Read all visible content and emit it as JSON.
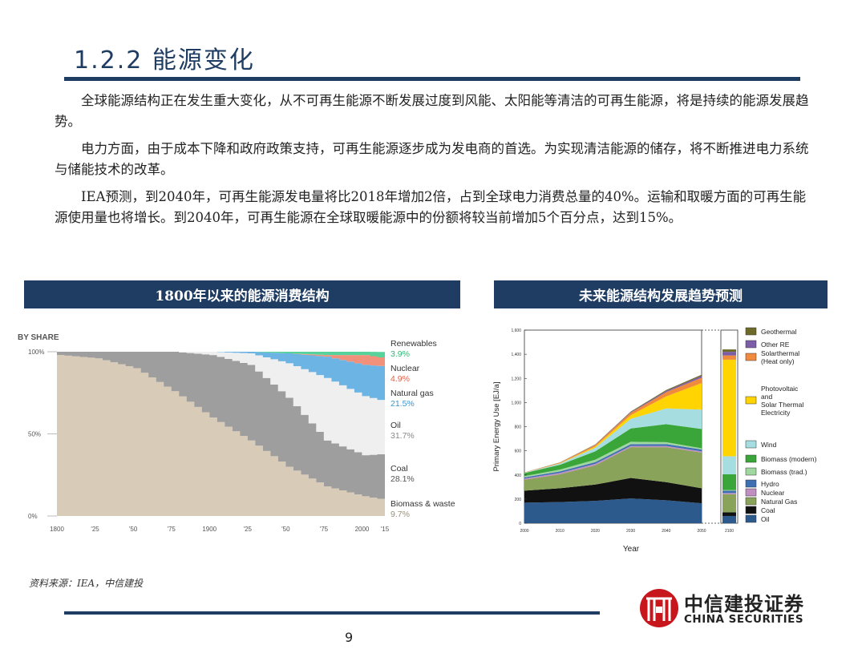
{
  "page": {
    "title": "1.2.2 能源变化",
    "paragraphs": [
      "全球能源结构正在发生重大变化，从不可再生能源不断发展过度到风能、太阳能等清洁的可再生能源，将是持续的能源发展趋势。",
      "电力方面，由于成本下降和政府政策支持，可再生能源逐步成为发电商的首选。为实现清洁能源的储存，将不断推进电力系统与储能技术的改革。",
      "IEA预测，到2040年，可再生能源发电量将比2018年增加2倍，占到全球电力消费总量的40%。运输和取暖方面的可再生能源使用量也将增长。到2040年，可再生能源在全球取暖能源中的份额将较当前增加5个百分点，达到15%。"
    ],
    "banner_left": "1800年以来的能源消费结构",
    "banner_right": "未来能源结构发展趋势预测",
    "source": "资料来源：IEA，中信建投",
    "page_number": "9",
    "logo_cn": "中信建投证券",
    "logo_en": "CHINA SECURITIES",
    "colors": {
      "navy": "#1f3d63",
      "logo_red": "#c8161d"
    }
  },
  "chart_data": [
    {
      "type": "area",
      "title": "BY SHARE",
      "x": [
        1800,
        1825,
        1850,
        1875,
        1900,
        1925,
        1950,
        1975,
        2000,
        2015
      ],
      "x_tick_labels": [
        "1800",
        "'25",
        "'50",
        "'75",
        "1900",
        "'25",
        "'50",
        "'75",
        "2000",
        "'15"
      ],
      "y_tick_labels": [
        "100%",
        "50%",
        "0%"
      ],
      "ylim": [
        0,
        100
      ],
      "series": [
        {
          "name": "Biomass & waste",
          "label": "9.7%",
          "color": "#d8ccb9",
          "values": [
            98,
            96,
            90,
            76,
            60,
            46,
            30,
            18,
            12,
            9.7
          ]
        },
        {
          "name": "Coal",
          "label": "28.1%",
          "color": "#9e9e9e",
          "values": [
            2,
            4,
            10,
            24,
            38,
            46,
            42,
            28,
            25,
            28.1
          ]
        },
        {
          "name": "Oil",
          "label": "31.7%",
          "color": "#efefef",
          "values": [
            0,
            0,
            0,
            0,
            2,
            7,
            21,
            38,
            36,
            31.7
          ]
        },
        {
          "name": "Natural gas",
          "label": "21.5%",
          "color": "#6cb4e4",
          "values": [
            0,
            0,
            0,
            0,
            0,
            1,
            6,
            13,
            19,
            21.5
          ]
        },
        {
          "name": "Nuclear",
          "label": "4.9%",
          "color": "#f2917b",
          "values": [
            0,
            0,
            0,
            0,
            0,
            0,
            0,
            1,
            6,
            4.9
          ]
        },
        {
          "name": "Renewables",
          "label": "3.9%",
          "color": "#55d39a",
          "values": [
            0,
            0,
            0,
            0,
            0,
            0,
            1,
            2,
            2,
            3.9
          ]
        }
      ]
    },
    {
      "type": "area",
      "title": "",
      "xlabel": "Year",
      "ylabel": "Primary Energy Use [EJ/a]",
      "x": [
        2000,
        2010,
        2020,
        2030,
        2040,
        2050
      ],
      "x_tick_labels": [
        "2000",
        "2010",
        "2020",
        "2030",
        "2040",
        "2050",
        "2100"
      ],
      "y_ticks": [
        0,
        200,
        400,
        600,
        800,
        1000,
        1200,
        1400,
        1600
      ],
      "ylim": [
        0,
        1600
      ],
      "series": [
        {
          "name": "Oil",
          "color": "#2d5a8c",
          "values": [
            170,
            175,
            185,
            205,
            190,
            165
          ],
          "value_2100": 60
        },
        {
          "name": "Coal",
          "color": "#111111",
          "values": [
            100,
            115,
            135,
            170,
            150,
            125
          ],
          "value_2100": 30
        },
        {
          "name": "Natural Gas",
          "color": "#8aa35a",
          "values": [
            90,
            115,
            160,
            255,
            290,
            295
          ],
          "value_2100": 150
        },
        {
          "name": "Nuclear",
          "color": "#c08fbf",
          "values": [
            10,
            12,
            12,
            10,
            10,
            10
          ],
          "value_2100": 10
        },
        {
          "name": "Hydro",
          "color": "#3f6fb3",
          "values": [
            10,
            12,
            14,
            15,
            16,
            16
          ],
          "value_2100": 20
        },
        {
          "name": "Biomass (trad.)",
          "color": "#a0d6a0",
          "values": [
            10,
            15,
            20,
            20,
            15,
            10
          ],
          "value_2100": 5
        },
        {
          "name": "Biomass (modern)",
          "color": "#3aa63a",
          "values": [
            25,
            40,
            70,
            110,
            150,
            160
          ],
          "value_2100": 130
        },
        {
          "name": "Wind",
          "color": "#a6dde0",
          "values": [
            3,
            10,
            30,
            80,
            130,
            160
          ],
          "value_2100": 150
        },
        {
          "name": "Photovoltaic and Solar Thermal Electricity",
          "color": "#ffd400",
          "values": [
            0,
            2,
            10,
            30,
            100,
            220
          ],
          "value_2100": 800
        },
        {
          "name": "Solarthermal (Heat only)",
          "color": "#f08a3c",
          "values": [
            2,
            5,
            12,
            20,
            35,
            45
          ],
          "value_2100": 35
        },
        {
          "name": "Other RE",
          "color": "#7b5ea7",
          "values": [
            0,
            1,
            2,
            5,
            10,
            15
          ],
          "value_2100": 30
        },
        {
          "name": "Geothermal",
          "color": "#6e6b2a",
          "values": [
            1,
            2,
            3,
            5,
            8,
            10
          ],
          "value_2100": 20
        }
      ],
      "legend": [
        "Geothermal",
        "Other RE",
        "Solarthermal (Heat only)",
        "Photovoltaic and Solar Thermal Electricity",
        "Wind",
        "Biomass (modern)",
        "Biomass (trad.)",
        "Hydro",
        "Nuclear",
        "Natural Gas",
        "Coal",
        "Oil"
      ]
    }
  ]
}
